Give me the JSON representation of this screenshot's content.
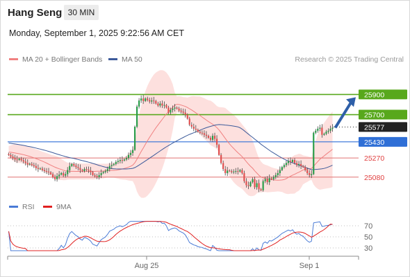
{
  "header": {
    "title": "Hang Seng",
    "interval": "30 MIN",
    "datetime": "Monday, September 1, 2025 9:22:56 AM CET"
  },
  "legend": {
    "item1": "MA 20 + Bollinger Bands",
    "item2": "MA 50",
    "copyright": "Research © 2025 Trading Central"
  },
  "rsi_legend": {
    "item1": "RSI",
    "item2": "9MA"
  },
  "colors": {
    "resistance": "#58a81c",
    "support_blue": "#2f6fd6",
    "support_red": "#e07070",
    "current": "#222222",
    "bollinger_fill": "#fde0de",
    "ma20": "#f08080",
    "ma50": "#3c5a9a",
    "up": "#2a9d4a",
    "down": "#e05050",
    "arrow": "#2e5fa8"
  },
  "chart_data": [
    {
      "type": "candlestick",
      "title": "Hang Seng",
      "x_ticks": [
        "Aug 25",
        "Sep 1"
      ],
      "ylim": [
        24900,
        26150
      ],
      "levels": [
        {
          "value": 25900,
          "label": "25900",
          "kind": "resistance"
        },
        {
          "value": 25700,
          "label": "25700",
          "kind": "resistance"
        },
        {
          "value": 25577,
          "label": "25577",
          "kind": "current"
        },
        {
          "value": 25430,
          "label": "25430",
          "kind": "support_blue"
        },
        {
          "value": 25270,
          "label": "25270",
          "kind": "support_red"
        },
        {
          "value": 25080,
          "label": "25080",
          "kind": "support_red"
        }
      ],
      "close": [
        25300,
        25285,
        25270,
        25255,
        25250,
        25262,
        25248,
        25235,
        25220,
        25205,
        25212,
        25200,
        25190,
        25170,
        25160,
        25165,
        25150,
        25140,
        25135,
        25128,
        25110,
        25080,
        25060,
        25090,
        25105,
        25120,
        25095,
        25110,
        25150,
        25190,
        25210,
        25195,
        25180,
        25170,
        25150,
        25140,
        25160,
        25155,
        25145,
        25130,
        25100,
        25090,
        25080,
        25100,
        25120,
        25130,
        25140,
        25160,
        25190,
        25200,
        25210,
        25230,
        25240,
        25250,
        25245,
        25255,
        25270,
        25300,
        25320,
        25350,
        25580,
        25780,
        25840,
        25860,
        25835,
        25860,
        25845,
        25830,
        25840,
        25835,
        25810,
        25790,
        25810,
        25790,
        25795,
        25770,
        25720,
        25745,
        25760,
        25770,
        25760,
        25740,
        25730,
        25720,
        25700,
        25660,
        25600,
        25580,
        25560,
        25550,
        25530,
        25520,
        25515,
        25500,
        25490,
        25470,
        25450,
        25490,
        25460,
        25400,
        25300,
        25220,
        25160,
        25120,
        25145,
        25140,
        25130,
        25135,
        25140,
        25135,
        25150,
        25120,
        25040,
        25000,
        24990,
        25030,
        25060,
        24980,
        25020,
        24960,
        24950,
        25040,
        25060,
        25030,
        25070,
        25060,
        25080,
        25100,
        25120,
        25150,
        25180,
        25200,
        25220,
        25240,
        25230,
        25250,
        25220,
        25200,
        25210,
        25190,
        25180,
        25150,
        25120,
        25100,
        25110,
        25520,
        25540,
        25560,
        25570,
        25500,
        25510,
        25530,
        25540,
        25560,
        25570
      ],
      "ma20_start": 25330,
      "ma50_start": 25420,
      "bollinger_halfwidth": 120
    },
    {
      "type": "line",
      "title": "RSI",
      "ylim": [
        20,
        80
      ],
      "y_ticks": [
        70,
        50,
        30
      ],
      "series": [
        {
          "name": "RSI"
        },
        {
          "name": "9MA"
        }
      ]
    }
  ]
}
